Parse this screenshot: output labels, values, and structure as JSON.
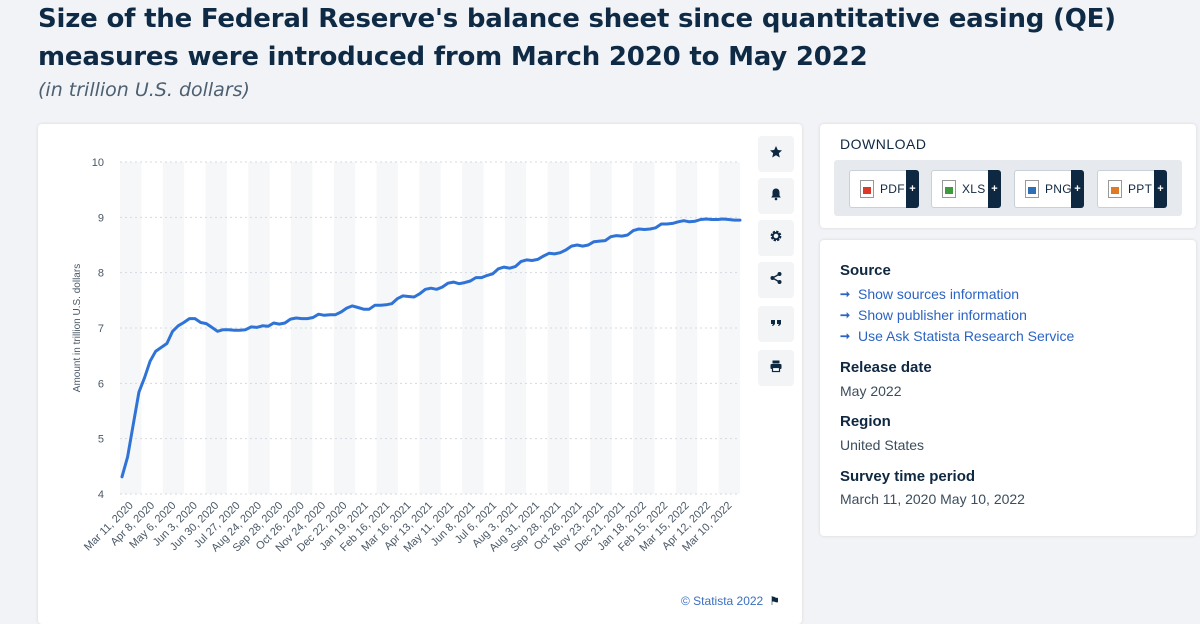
{
  "header": {
    "title": "Size of the Federal Reserve's balance sheet since quantitative easing (QE) measures were introduced from March 2020 to May 2022",
    "subtitle": "(in trillion U.S. dollars)"
  },
  "toolbar": {
    "buttons": [
      {
        "icon": "star-icon"
      },
      {
        "icon": "bell-icon"
      },
      {
        "icon": "gear-icon"
      },
      {
        "icon": "share-icon"
      },
      {
        "icon": "quote-icon"
      },
      {
        "icon": "print-icon"
      }
    ]
  },
  "credit": "© Statista 2022",
  "download": {
    "title": "DOWNLOAD",
    "buttons": [
      {
        "label": "PDF",
        "color": "#d93a2b"
      },
      {
        "label": "XLS",
        "color": "#3f9a3b"
      },
      {
        "label": "PNG",
        "color": "#2f6fb5"
      },
      {
        "label": "PPT",
        "color": "#e07a26"
      }
    ],
    "plus": "+"
  },
  "info": {
    "source_heading": "Source",
    "links": [
      "Show sources information",
      "Show publisher information",
      "Use Ask Statista Research Service"
    ],
    "release_heading": "Release date",
    "release_value": "May 2022",
    "region_heading": "Region",
    "region_value": "United States",
    "period_heading": "Survey time period",
    "period_value": "March 11, 2020 May 10, 2022"
  },
  "chart_data": {
    "type": "line",
    "ylabel": "Amount in trillion U.S. dollars",
    "ylim": [
      4,
      10
    ],
    "yticks": [
      4,
      5,
      6,
      7,
      8,
      9,
      10
    ],
    "grid": true,
    "line_color": "#2f73d6",
    "xtick_labels": [
      "Mar 11, 2020",
      "Apr 8, 2020",
      "May 6, 2020",
      "Jun 3, 2020",
      "Jun 30, 2020",
      "Jul 27, 2020",
      "Aug 24, 2020",
      "Sep 28, 2020",
      "Oct 26, 2020",
      "Nov 24, 2020",
      "Dec 22, 2020",
      "Jan 19, 2021",
      "Feb 16, 2021",
      "Mar 16, 2021",
      "Apr 13, 2021",
      "May 11, 2021",
      "Jun 8, 2021",
      "Jul 6, 2021",
      "Aug 3, 2021",
      "Aug 31, 2021",
      "Sep 28, 2021",
      "Oct 26, 2021",
      "Nov 23, 2021",
      "Dec 21, 2021",
      "Jan 18, 2022",
      "Feb 15, 2022",
      "Mar 15, 2022",
      "Apr 12, 2022",
      "Mar 10, 2022"
    ],
    "values": [
      4.31,
      4.67,
      5.25,
      5.84,
      6.1,
      6.4,
      6.58,
      6.65,
      6.72,
      6.94,
      7.04,
      7.1,
      7.17,
      7.17,
      7.1,
      7.08,
      7.01,
      6.94,
      6.97,
      6.97,
      6.96,
      6.96,
      6.97,
      7.02,
      7.01,
      7.04,
      7.03,
      7.09,
      7.07,
      7.09,
      7.16,
      7.18,
      7.17,
      7.17,
      7.19,
      7.25,
      7.23,
      7.24,
      7.24,
      7.29,
      7.36,
      7.4,
      7.37,
      7.34,
      7.34,
      7.41,
      7.41,
      7.42,
      7.44,
      7.53,
      7.58,
      7.57,
      7.56,
      7.62,
      7.7,
      7.72,
      7.7,
      7.74,
      7.81,
      7.83,
      7.8,
      7.82,
      7.85,
      7.91,
      7.91,
      7.95,
      7.98,
      8.07,
      8.1,
      8.08,
      8.11,
      8.2,
      8.23,
      8.22,
      8.24,
      8.3,
      8.35,
      8.34,
      8.36,
      8.41,
      8.48,
      8.5,
      8.48,
      8.5,
      8.56,
      8.57,
      8.58,
      8.65,
      8.67,
      8.66,
      8.68,
      8.76,
      8.79,
      8.78,
      8.79,
      8.81,
      8.88,
      8.88,
      8.89,
      8.92,
      8.94,
      8.92,
      8.93,
      8.96,
      8.97,
      8.96,
      8.96,
      8.97,
      8.96,
      8.95,
      8.95
    ]
  }
}
